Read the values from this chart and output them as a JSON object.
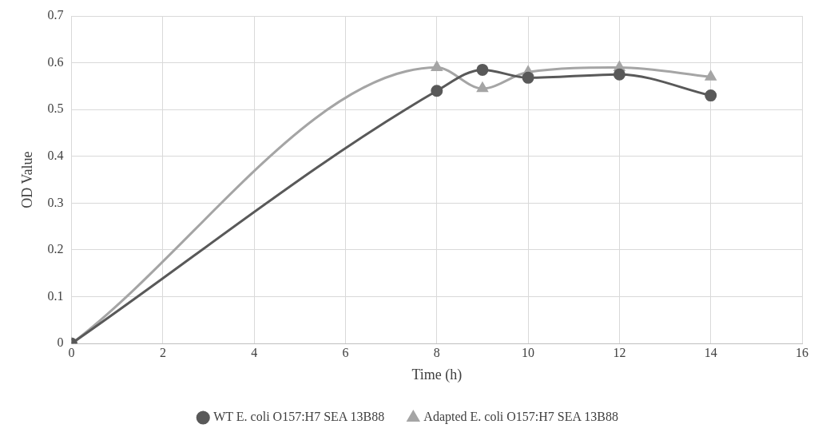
{
  "chart_data": {
    "type": "line",
    "xlabel": "Time (h)",
    "ylabel": "OD Value",
    "xlim": [
      0,
      16
    ],
    "xticks": [
      0,
      2,
      4,
      6,
      8,
      10,
      12,
      14,
      16
    ],
    "ylim": [
      0,
      0.7
    ],
    "yticks": [
      0,
      0.1,
      0.2,
      0.3,
      0.4,
      0.5,
      0.6,
      0.7
    ],
    "grid": true,
    "legend": "bottom",
    "series": [
      {
        "name": "WT E. coli O157:H7 SEA 13B88",
        "color": "#595959",
        "marker": "circle",
        "x": [
          0,
          8,
          9,
          10,
          12,
          14
        ],
        "values": [
          0,
          0.54,
          0.585,
          0.568,
          0.575,
          0.53
        ]
      },
      {
        "name": "Adapted E. coli O157:H7 SEA 13B88",
        "color": "#a5a5a5",
        "marker": "triangle",
        "x": [
          0,
          8,
          9,
          10,
          12,
          14
        ],
        "values": [
          0,
          0.59,
          0.545,
          0.58,
          0.59,
          0.57
        ]
      }
    ]
  }
}
